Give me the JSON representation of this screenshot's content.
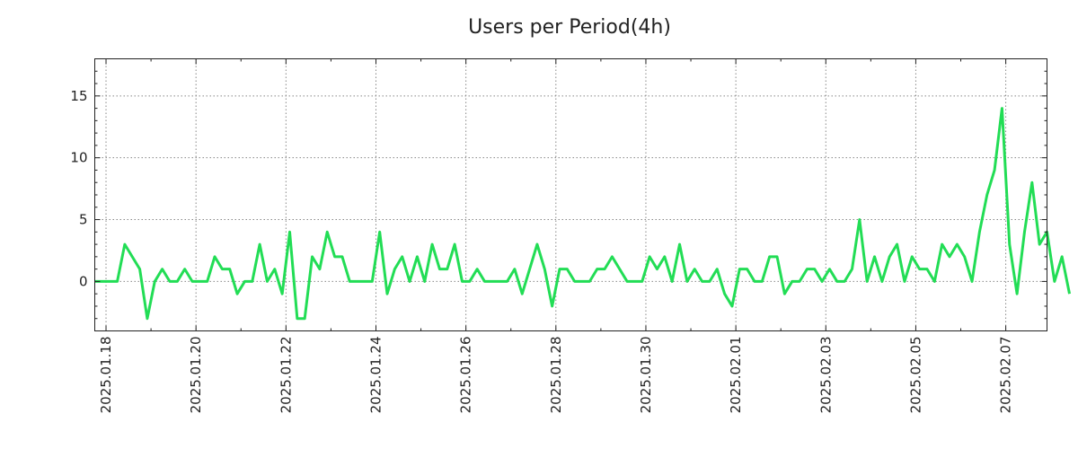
{
  "chart_data": {
    "type": "line",
    "title": "Users per Period(4h)",
    "xlabel": "",
    "ylabel": "",
    "ylim": [
      -4,
      18
    ],
    "xlim": [
      0,
      127
    ],
    "grid": true,
    "line_color": "#22dd55",
    "y_ticks": [
      0,
      5,
      10,
      15
    ],
    "x_ticks": [
      {
        "pos": 1.5,
        "label": "2025.01.18"
      },
      {
        "pos": 13.5,
        "label": "2025.01.20"
      },
      {
        "pos": 25.5,
        "label": "2025.01.22"
      },
      {
        "pos": 37.5,
        "label": "2025.01.24"
      },
      {
        "pos": 49.5,
        "label": "2025.01.26"
      },
      {
        "pos": 61.5,
        "label": "2025.01.28"
      },
      {
        "pos": 73.5,
        "label": "2025.01.30"
      },
      {
        "pos": 85.5,
        "label": "2025.02.01"
      },
      {
        "pos": 97.5,
        "label": "2025.02.03"
      },
      {
        "pos": 109.5,
        "label": "2025.02.05"
      },
      {
        "pos": 121.5,
        "label": "2025.02.07"
      }
    ],
    "series": [
      {
        "name": "users",
        "values": [
          0,
          0,
          0,
          0,
          3,
          2,
          1,
          -3,
          0,
          1,
          0,
          0,
          1,
          0,
          0,
          0,
          2,
          1,
          1,
          -1,
          0,
          0,
          3,
          0,
          1,
          -1,
          4,
          -3,
          -3,
          2,
          1,
          4,
          2,
          2,
          0,
          0,
          0,
          0,
          4,
          -1,
          1,
          2,
          0,
          2,
          0,
          3,
          1,
          1,
          3,
          0,
          0,
          1,
          0,
          0,
          0,
          0,
          1,
          -1,
          1,
          3,
          1,
          -2,
          1,
          1,
          0,
          0,
          0,
          1,
          1,
          2,
          1,
          0,
          0,
          0,
          2,
          1,
          2,
          0,
          3,
          0,
          1,
          0,
          0,
          1,
          -1,
          -2,
          1,
          1,
          0,
          0,
          2,
          2,
          -1,
          0,
          0,
          1,
          1,
          0,
          1,
          0,
          0,
          1,
          5,
          0,
          2,
          0,
          2,
          3,
          0,
          2,
          1,
          1,
          0,
          3,
          2,
          3,
          2,
          0,
          4,
          7,
          9,
          14,
          3,
          -1,
          4,
          8,
          3,
          4,
          0,
          2,
          -1
        ]
      }
    ]
  }
}
